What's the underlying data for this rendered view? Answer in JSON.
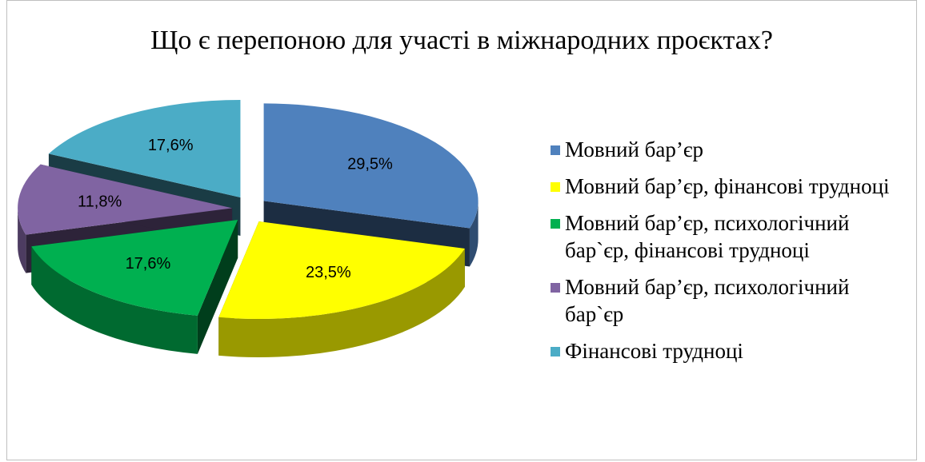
{
  "chart_data": {
    "type": "pie3d",
    "title": "Що є перепоною для участі в міжнародних проєктах?",
    "categories": [
      "Мовний бар’єр",
      "Мовний бар’єр, фінансові трудноці",
      "Мовний бар’єр, психологічний бар`єр, фінансові трудноці",
      "Мовний бар’єр, психологічний бар`єр",
      "Фінансові трудноці"
    ],
    "values": [
      29.5,
      23.5,
      17.6,
      11.8,
      17.6
    ],
    "value_labels": [
      "29,5%",
      "23,5%",
      "17,6%",
      "11,8%",
      "17,6%"
    ],
    "colors": [
      "#4f81bd",
      "#ffff00",
      "#00b050",
      "#8064a2",
      "#4bacc6"
    ],
    "legend": "right"
  }
}
